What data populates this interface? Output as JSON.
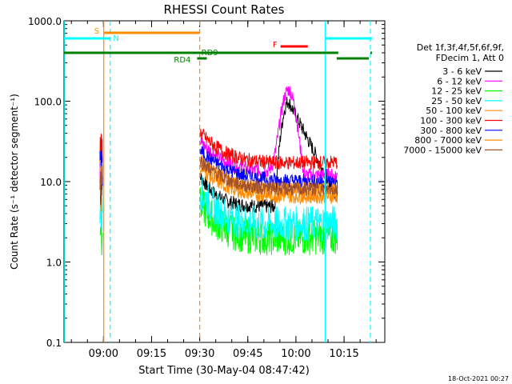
{
  "chart_data": {
    "type": "line",
    "title": "RHESSI Count Rates",
    "xlabel": "Start Time (30-May-04 08:47:42)",
    "ylabel": "Count Rate (s⁻¹ detector segment⁻¹)",
    "y_scale": "log",
    "ylim": [
      0.1,
      1000
    ],
    "xlim_minutes_after_start": [
      0,
      100
    ],
    "x_tick_labels": [
      "09:00",
      "09:15",
      "09:30",
      "09:45",
      "10:00",
      "10:15"
    ],
    "x_tick_minutes": [
      12.3,
      27.3,
      42.3,
      57.3,
      72.3,
      87.3
    ],
    "y_tick_labels": [
      "0.1",
      "1.0",
      "10.0",
      "100.0",
      "1000.0"
    ],
    "y_tick_values": [
      0.1,
      1,
      10,
      100,
      1000
    ],
    "legend": {
      "header": [
        "Det 1f,3f,4f,5f,6f,9f,",
        "FDecim 1, Att 0"
      ],
      "location": "right"
    },
    "timestamp": "18-Oct-2021 00:27",
    "series": [
      {
        "name": "3 - 6 keV",
        "color": "#000000",
        "data_gap": [
          [
            0,
            11
          ],
          [
            13.5,
            42
          ],
          [
            85.5,
            100
          ]
        ],
        "base_rate": 6.5,
        "peak": {
          "t": 70,
          "value": 100
        }
      },
      {
        "name": "6 - 12 keV",
        "color": "#ff00ff",
        "base_rate": 15,
        "peak": {
          "t": 70,
          "value": 125
        }
      },
      {
        "name": "12 - 25 keV",
        "color": "#00ff00",
        "base_rate": 2.2
      },
      {
        "name": "25 - 50 keV",
        "color": "#00ffff",
        "base_rate": 3.0
      },
      {
        "name": "50 - 100 keV",
        "color": "#ff8c00",
        "base_rate": 6.5
      },
      {
        "name": "100 - 300 keV",
        "color": "#ff0000",
        "base_rate": 16
      },
      {
        "name": "300 - 800 keV",
        "color": "#0000ff",
        "base_rate": 10
      },
      {
        "name": "800 - 7000 keV",
        "color": "#ff8c00",
        "base_rate": 8
      },
      {
        "name": "7000 - 15000 keV",
        "color": "#a0522d",
        "base_rate": 8
      }
    ],
    "annotations": [
      {
        "label": "S",
        "color": "#ff8c00",
        "t_start": 12.5,
        "t_end": 42.3
      },
      {
        "label": "N",
        "color": "#00ffff",
        "t_start": 0,
        "t_end": 14.5
      },
      {
        "label": "RD9",
        "color": "#008000",
        "t_start": 0,
        "t_end": 85.5
      },
      {
        "label": "RD4",
        "color": "#008000",
        "t_start": 41.5,
        "t_end": 44.5
      },
      {
        "label": "F",
        "color": "#ff0000",
        "t_start": 67.5,
        "t_end": 76
      }
    ]
  }
}
